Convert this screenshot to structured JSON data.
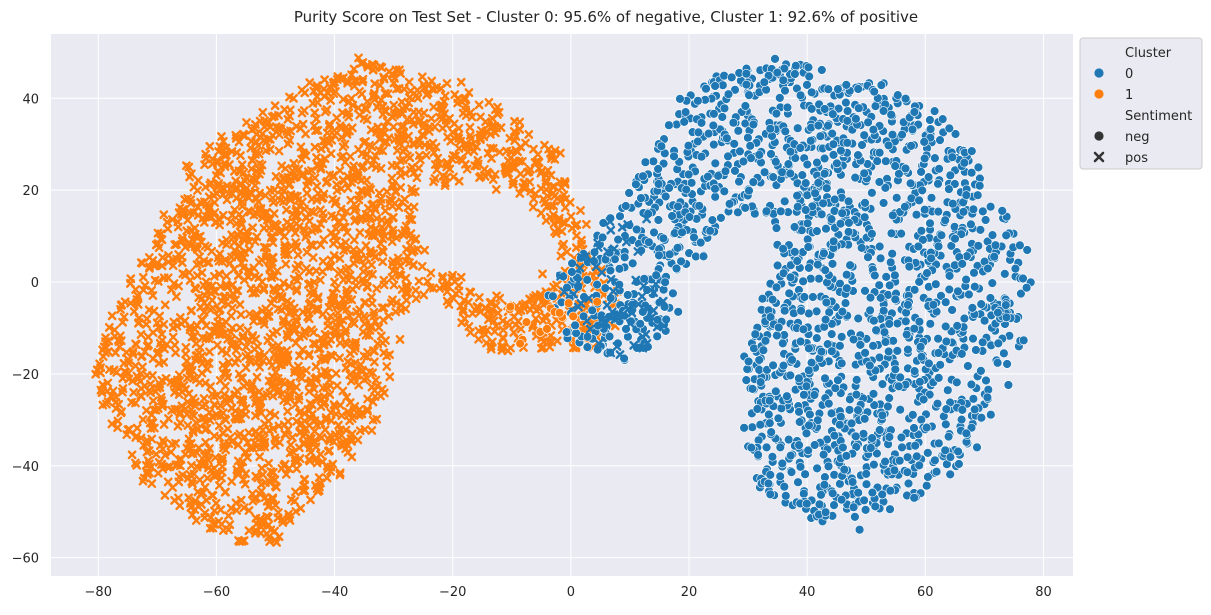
{
  "chart_data": {
    "type": "scatter",
    "title": "Purity Score on Test Set - Cluster 0: 95.6% of negative, Cluster 1: 92.6% of positive",
    "xlabel": "",
    "ylabel": "",
    "xlim": [
      -88,
      85
    ],
    "ylim": [
      -64,
      54
    ],
    "xticks": [
      -80,
      -60,
      -40,
      -20,
      0,
      20,
      40,
      60,
      80
    ],
    "yticks": [
      -60,
      -40,
      -20,
      0,
      20,
      40
    ],
    "xtick_labels": [
      "−80",
      "−60",
      "−40",
      "−20",
      "0",
      "20",
      "40",
      "60",
      "80"
    ],
    "ytick_labels": [
      "−60",
      "−40",
      "−20",
      "0",
      "20",
      "40"
    ],
    "grid": true,
    "style": "seaborn darkgrid",
    "legend": {
      "placement": "outside-upper-right",
      "hue_title": "Cluster",
      "hue_entries": [
        {
          "label": "0",
          "color": "#1f77b4"
        },
        {
          "label": "1",
          "color": "#ff7f0e"
        }
      ],
      "style_title": "Sentiment",
      "style_entries": [
        {
          "label": "neg",
          "marker": "circle"
        },
        {
          "label": "pos",
          "marker": "x"
        }
      ]
    },
    "series": [
      {
        "name": "1",
        "color": "#ff7f0e",
        "marker": "x",
        "region": "crescent",
        "description": "orange cluster spanning approximately x −80 to 10, y −58 to 48",
        "outline": [
          [
            -35,
            48
          ],
          [
            -20,
            44
          ],
          [
            -12,
            38
          ],
          [
            -5,
            32
          ],
          [
            0,
            22
          ],
          [
            3,
            10
          ],
          [
            8,
            -5
          ],
          [
            5,
            -14
          ],
          [
            -5,
            -15
          ],
          [
            -15,
            -15
          ],
          [
            -18,
            -10
          ],
          [
            -22,
            -2
          ],
          [
            -28,
            -6
          ],
          [
            -32,
            -22
          ],
          [
            -35,
            -36
          ],
          [
            -42,
            -45
          ],
          [
            -50,
            -56
          ],
          [
            -58,
            -56
          ],
          [
            -66,
            -50
          ],
          [
            -72,
            -42
          ],
          [
            -78,
            -30
          ],
          [
            -80,
            -18
          ],
          [
            -78,
            -8
          ],
          [
            -74,
            0
          ],
          [
            -70,
            10
          ],
          [
            -66,
            20
          ],
          [
            -64,
            28
          ],
          [
            -56,
            34
          ],
          [
            -48,
            40
          ],
          [
            -42,
            44
          ]
        ],
        "hole": [
          [
            -27,
            20
          ],
          [
            -18,
            22
          ],
          [
            -10,
            20
          ],
          [
            -4,
            14
          ],
          [
            -2,
            4
          ],
          [
            -8,
            -4
          ],
          [
            -16,
            -2
          ],
          [
            -22,
            4
          ],
          [
            -26,
            12
          ]
        ]
      },
      {
        "name": "0",
        "color": "#1f77b4",
        "marker": "circle",
        "region": "crescent",
        "description": "blue cluster spanning approximately x −4 to 78, y −54 to 49",
        "outline": [
          [
            28,
            48
          ],
          [
            38,
            48
          ],
          [
            48,
            45
          ],
          [
            56,
            42
          ],
          [
            63,
            36
          ],
          [
            68,
            28
          ],
          [
            72,
            20
          ],
          [
            75,
            12
          ],
          [
            77,
            4
          ],
          [
            77,
            -5
          ],
          [
            76,
            -16
          ],
          [
            72,
            -28
          ],
          [
            66,
            -40
          ],
          [
            58,
            -48
          ],
          [
            48,
            -53
          ],
          [
            38,
            -50
          ],
          [
            32,
            -44
          ],
          [
            30,
            -35
          ],
          [
            30,
            -22
          ],
          [
            30,
            -10
          ],
          [
            33,
            -2
          ],
          [
            36,
            4
          ],
          [
            35,
            10
          ],
          [
            33,
            14
          ],
          [
            28,
            16
          ],
          [
            24,
            10
          ],
          [
            20,
            0
          ],
          [
            16,
            -10
          ],
          [
            12,
            -16
          ],
          [
            6,
            -17
          ],
          [
            0,
            -12
          ],
          [
            -4,
            -6
          ],
          [
            -2,
            2
          ],
          [
            4,
            8
          ],
          [
            7,
            16
          ],
          [
            12,
            28
          ],
          [
            18,
            40
          ],
          [
            22,
            44
          ]
        ],
        "hole": [
          [
            28,
            15
          ],
          [
            33,
            14
          ],
          [
            35,
            10
          ],
          [
            34,
            4
          ],
          [
            32,
            -2
          ],
          [
            29,
            8
          ]
        ]
      }
    ]
  }
}
